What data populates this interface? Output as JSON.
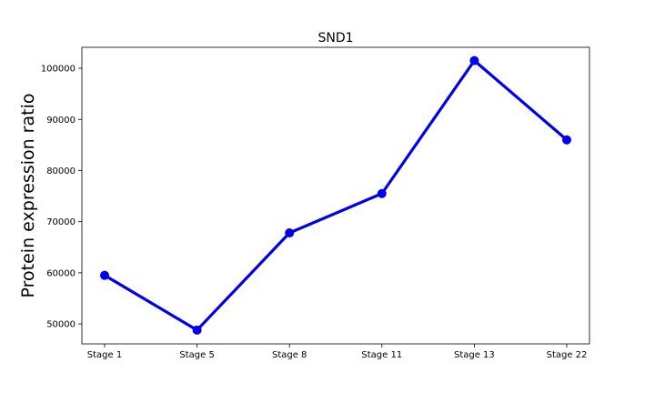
{
  "chart_data": {
    "type": "line",
    "title": "SND1",
    "xlabel": "",
    "ylabel": "Protein expression ratio",
    "categories": [
      "Stage 1",
      "Stage 5",
      "Stage 8",
      "Stage 11",
      "Stage 13",
      "Stage 22"
    ],
    "series": [
      {
        "values": [
          59500,
          48800,
          67800,
          75500,
          101500,
          86000
        ],
        "color": "#0000ee"
      }
    ],
    "ylim": [
      46100,
      104100
    ],
    "yticks": [
      50000,
      60000,
      70000,
      80000,
      90000,
      100000
    ],
    "ytick_labels": [
      "50000",
      "60000",
      "70000",
      "80000",
      "90000",
      "100000"
    ],
    "grid": false,
    "legend": "none"
  }
}
